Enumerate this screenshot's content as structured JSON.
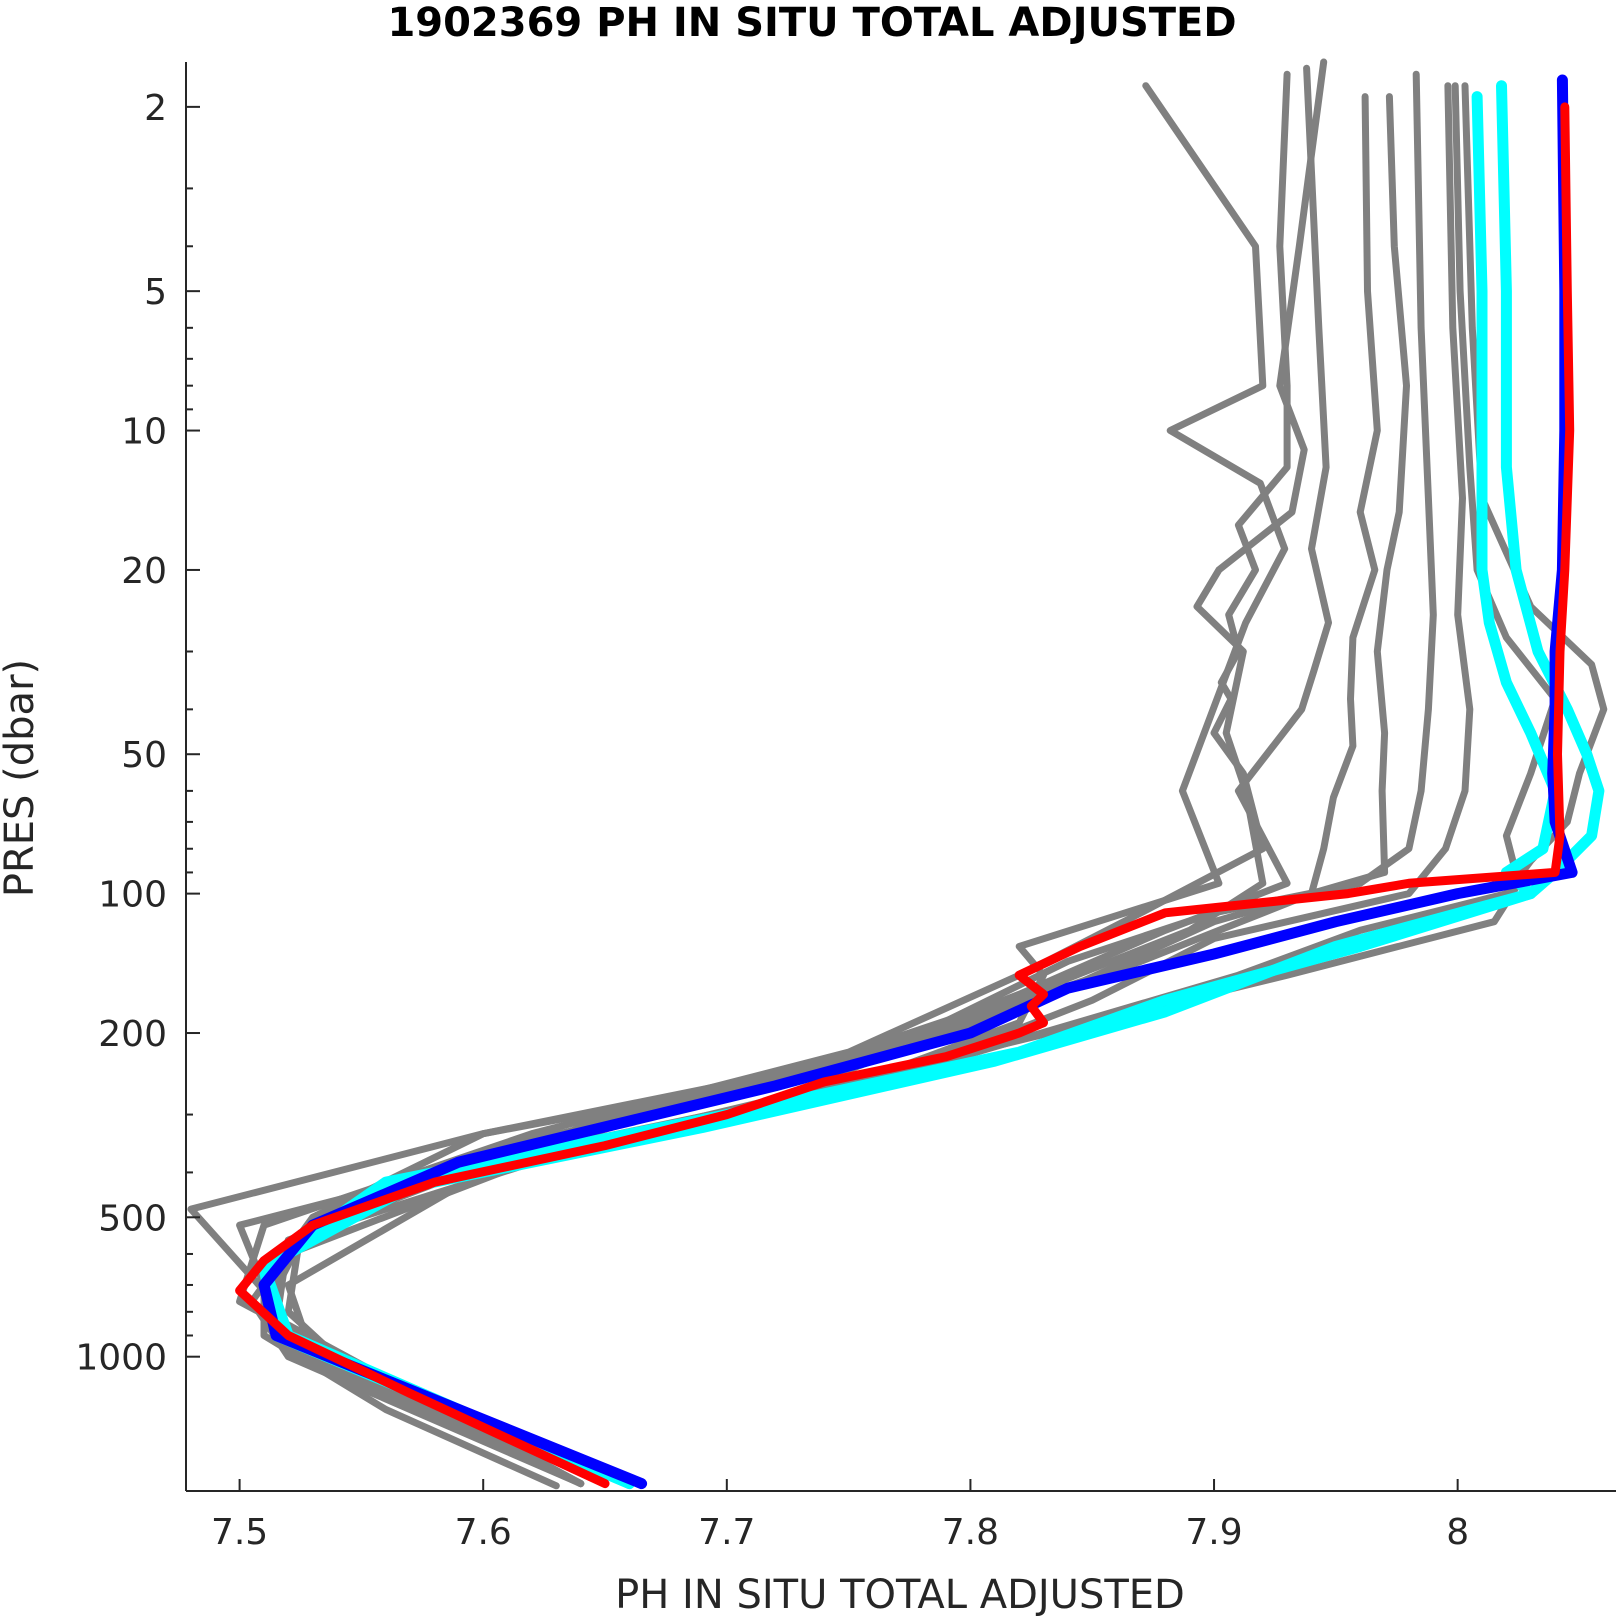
{
  "chart_data": {
    "type": "line",
    "title": "1902369  PH IN SITU TOTAL ADJUSTED",
    "xlabel": "PH IN SITU TOTAL ADJUSTED",
    "ylabel": "PRES (dbar)",
    "xlim": [
      7.478,
      8.065
    ],
    "ylim": [
      1.6,
      1950
    ],
    "y_scale": "log",
    "y_reversed": true,
    "x_ticks": [
      7.5,
      7.6,
      7.7,
      7.8,
      7.9,
      8.0
    ],
    "x_tick_labels": [
      "7.5",
      "7.6",
      "7.7",
      "7.8",
      "7.9",
      "8"
    ],
    "y_ticks": [
      2,
      5,
      10,
      20,
      50,
      100,
      200,
      500,
      1000
    ],
    "y_tick_labels": [
      "2",
      "5",
      "10",
      "20",
      "50",
      "100",
      "200",
      "500",
      "1000"
    ],
    "colors": {
      "history": "#808080",
      "recent": "#00ffff",
      "previous": "#0000ff",
      "latest": "#ff0000"
    },
    "series": [
      {
        "color": "#808080",
        "pres": [
          1.8,
          4,
          8,
          10,
          13,
          18,
          26,
          60,
          95,
          130,
          150,
          190,
          260,
          380,
          520,
          700,
          900,
          1300,
          1900
        ],
        "ph": [
          7.872,
          7.917,
          7.92,
          7.882,
          7.919,
          7.929,
          7.913,
          7.887,
          7.902,
          7.82,
          7.83,
          7.82,
          7.75,
          7.6,
          7.5,
          7.51,
          7.51,
          7.56,
          7.63
        ]
      },
      {
        "color": "#808080",
        "pres": [
          1.6,
          4,
          8,
          11,
          15,
          20,
          24,
          30,
          45,
          60,
          95,
          120,
          160,
          240,
          330,
          480,
          720,
          950,
          1880
        ],
        "ph": [
          7.945,
          7.935,
          7.927,
          7.937,
          7.932,
          7.902,
          7.893,
          7.912,
          7.905,
          7.913,
          7.92,
          7.89,
          7.83,
          7.73,
          7.6,
          7.48,
          7.51,
          7.52,
          7.64
        ]
      },
      {
        "color": "#808080",
        "pres": [
          1.7,
          4,
          8,
          12,
          16,
          20,
          25,
          30,
          35,
          38,
          45,
          55,
          80,
          110,
          150,
          220,
          330,
          520,
          760,
          1880
        ],
        "ph": [
          7.93,
          7.927,
          7.93,
          7.93,
          7.91,
          7.917,
          7.906,
          7.91,
          7.903,
          7.907,
          7.9,
          7.912,
          7.92,
          7.87,
          7.82,
          7.75,
          7.62,
          7.51,
          7.5,
          7.64
        ]
      },
      {
        "color": "#808080",
        "pres": [
          1.65,
          6,
          12,
          18,
          26,
          33,
          40,
          60,
          95,
          120,
          165,
          240,
          330,
          500,
          760,
          1000,
          1880
        ],
        "ph": [
          7.938,
          7.943,
          7.946,
          7.94,
          7.947,
          7.941,
          7.936,
          7.91,
          7.93,
          7.88,
          7.82,
          7.74,
          7.6,
          7.53,
          7.505,
          7.52,
          7.64
        ]
      },
      {
        "color": "#808080",
        "pres": [
          1.9,
          5,
          10,
          15,
          20,
          28,
          38,
          48,
          62,
          80,
          100,
          140,
          220,
          320,
          560,
          850,
          1880
        ],
        "ph": [
          7.962,
          7.963,
          7.967,
          7.96,
          7.966,
          7.957,
          7.956,
          7.957,
          7.949,
          7.945,
          7.94,
          7.87,
          7.76,
          7.64,
          7.52,
          7.515,
          7.64
        ]
      },
      {
        "color": "#808080",
        "pres": [
          1.9,
          4,
          8,
          15,
          20,
          30,
          45,
          60,
          90,
          115,
          160,
          240,
          340,
          540,
          800,
          1000,
          1880
        ],
        "ph": [
          7.972,
          7.974,
          7.979,
          7.976,
          7.971,
          7.967,
          7.97,
          7.969,
          7.97,
          7.9,
          7.84,
          7.75,
          7.62,
          7.525,
          7.52,
          7.54,
          7.64
        ]
      },
      {
        "color": "#808080",
        "pres": [
          1.7,
          6,
          14,
          25,
          40,
          60,
          80,
          95,
          110,
          140,
          200,
          300,
          500,
          800,
          1000,
          1880
        ],
        "ph": [
          7.983,
          7.985,
          7.988,
          7.99,
          7.988,
          7.985,
          7.98,
          7.96,
          7.9,
          7.84,
          7.78,
          7.67,
          7.53,
          7.51,
          7.525,
          7.64
        ]
      },
      {
        "color": "#808080",
        "pres": [
          1.8,
          6,
          14,
          25,
          40,
          60,
          80,
          100,
          125,
          170,
          260,
          400,
          700,
          1000,
          1880
        ],
        "ph": [
          7.996,
          7.998,
          8.002,
          8.0,
          8.005,
          8.003,
          7.995,
          7.98,
          7.9,
          7.85,
          7.76,
          7.6,
          7.52,
          7.53,
          7.64
        ]
      },
      {
        "color": "#808080",
        "pres": [
          1.8,
          5,
          12,
          20,
          28,
          38,
          55,
          75,
          95,
          115,
          150,
          220,
          340,
          560,
          800,
          1880
        ],
        "ph": [
          7.999,
          8.001,
          8.005,
          8.008,
          8.02,
          8.04,
          8.03,
          8.02,
          8.025,
          8.015,
          7.93,
          7.8,
          7.65,
          7.52,
          7.51,
          7.64
        ]
      },
      {
        "color": "#808080",
        "pres": [
          1.8,
          6,
          14,
          24,
          32,
          40,
          55,
          70,
          85,
          100,
          120,
          150,
          230,
          360,
          600,
          850,
          1880
        ],
        "ph": [
          8.003,
          8.006,
          8.01,
          8.03,
          8.055,
          8.06,
          8.05,
          8.045,
          8.03,
          8.02,
          7.96,
          7.91,
          7.79,
          7.63,
          7.52,
          7.51,
          7.64
        ]
      },
      {
        "color": "#00ffff",
        "pres": [
          1.9,
          5,
          12,
          20,
          26,
          35,
          45,
          60,
          80,
          90,
          100,
          130,
          170,
          220,
          300,
          420,
          640,
          900,
          1880
        ],
        "ph": [
          8.008,
          8.01,
          8.01,
          8.01,
          8.013,
          8.02,
          8.03,
          8.04,
          8.035,
          8.02,
          8.03,
          7.96,
          7.88,
          7.82,
          7.7,
          7.56,
          7.51,
          7.52,
          7.66
        ]
      },
      {
        "color": "#00ffff",
        "pres": [
          1.8,
          5,
          12,
          20,
          30,
          40,
          50,
          60,
          75,
          90,
          100,
          130,
          180,
          230,
          320,
          430,
          640,
          900,
          1880
        ],
        "ph": [
          8.018,
          8.02,
          8.02,
          8.024,
          8.033,
          8.045,
          8.053,
          8.058,
          8.055,
          8.04,
          8.03,
          7.95,
          7.88,
          7.81,
          7.69,
          7.57,
          7.51,
          7.515,
          7.66
        ]
      },
      {
        "color": "#0000ff",
        "pres": [
          1.75,
          5,
          10,
          20,
          30,
          40,
          55,
          70,
          90,
          100,
          115,
          135,
          160,
          200,
          260,
          380,
          520,
          700,
          900,
          1880
        ],
        "ph": [
          8.043,
          8.044,
          8.044,
          8.043,
          8.04,
          8.04,
          8.039,
          8.04,
          8.047,
          8.0,
          7.95,
          7.9,
          7.84,
          7.8,
          7.72,
          7.59,
          7.53,
          7.51,
          7.515,
          7.665
        ]
      },
      {
        "color": "#ff0000",
        "pres": [
          2.0,
          5,
          10,
          20,
          30,
          50,
          75,
          90,
          95,
          100,
          110,
          130,
          150,
          165,
          175,
          190,
          200,
          225,
          255,
          300,
          350,
          420,
          520,
          620,
          720,
          900,
          1200,
          1880
        ],
        "ph": [
          8.044,
          8.045,
          8.046,
          8.044,
          8.042,
          8.041,
          8.042,
          8.04,
          7.98,
          7.955,
          7.88,
          7.845,
          7.82,
          7.83,
          7.825,
          7.83,
          7.82,
          7.79,
          7.74,
          7.7,
          7.65,
          7.58,
          7.53,
          7.51,
          7.5,
          7.52,
          7.57,
          7.65
        ]
      }
    ]
  }
}
